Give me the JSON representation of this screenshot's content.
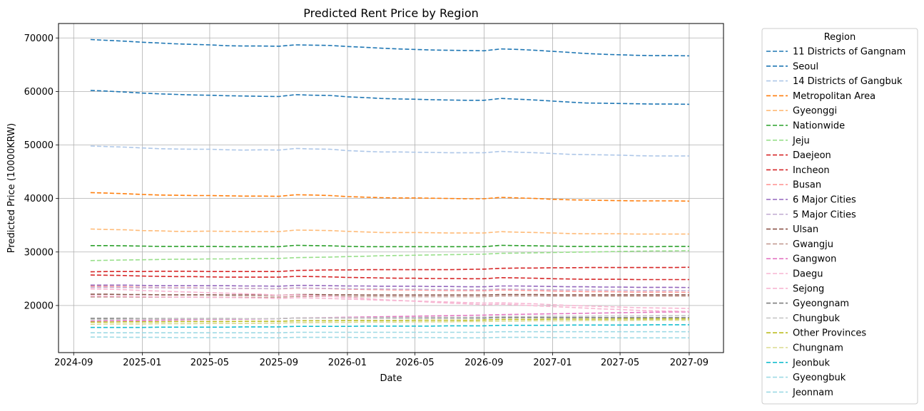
{
  "chart_data": {
    "type": "line",
    "title": "Predicted Rent Price by Region",
    "xlabel": "Date",
    "ylabel": "Predicted Price (10000KRW)",
    "grid": true,
    "line_style": "dashed",
    "legend": {
      "title": "Region",
      "placement": "outside-right"
    },
    "xlim": [
      "2024-08-05",
      "2027-11-01"
    ],
    "ylim": [
      11200,
      72700
    ],
    "x_ticks": [
      "2024-09",
      "2025-01",
      "2025-05",
      "2025-09",
      "2026-01",
      "2026-05",
      "2026-09",
      "2027-01",
      "2027-05",
      "2027-09"
    ],
    "y_ticks": [
      20000,
      30000,
      40000,
      50000,
      60000,
      70000
    ],
    "x": [
      "2024-10",
      "2024-11",
      "2024-12",
      "2025-01",
      "2025-02",
      "2025-03",
      "2025-04",
      "2025-05",
      "2025-06",
      "2025-07",
      "2025-08",
      "2025-09",
      "2025-10",
      "2025-11",
      "2025-12",
      "2026-01",
      "2026-02",
      "2026-03",
      "2026-04",
      "2026-05",
      "2026-06",
      "2026-07",
      "2026-08",
      "2026-09",
      "2026-10",
      "2026-11",
      "2026-12",
      "2027-01",
      "2027-02",
      "2027-03",
      "2027-04",
      "2027-05",
      "2027-06",
      "2027-07",
      "2027-08",
      "2027-09"
    ],
    "series": [
      {
        "name": "11 Districts of Gangnam",
        "color": "#1f77b4",
        "values": [
          69700,
          69550,
          69400,
          69200,
          69050,
          68900,
          68800,
          68700,
          68550,
          68500,
          68500,
          68450,
          68700,
          68650,
          68600,
          68400,
          68250,
          68100,
          67950,
          67850,
          67750,
          67700,
          67650,
          67600,
          67950,
          67850,
          67700,
          67500,
          67300,
          67100,
          66950,
          66850,
          66750,
          66700,
          66700,
          66650
        ]
      },
      {
        "name": "Seoul",
        "color": "#1f77b4",
        "values": [
          60200,
          60050,
          59900,
          59700,
          59550,
          59450,
          59350,
          59300,
          59200,
          59150,
          59100,
          59050,
          59400,
          59300,
          59250,
          59000,
          58850,
          58700,
          58600,
          58550,
          58450,
          58400,
          58350,
          58350,
          58700,
          58550,
          58400,
          58200,
          58000,
          57850,
          57800,
          57750,
          57700,
          57650,
          57650,
          57600
        ]
      },
      {
        "name": "14 Districts of Gangbuk",
        "color": "#aec7e8",
        "values": [
          49800,
          49700,
          49600,
          49450,
          49300,
          49250,
          49200,
          49200,
          49100,
          49050,
          49100,
          49050,
          49350,
          49250,
          49200,
          48950,
          48800,
          48700,
          48700,
          48650,
          48600,
          48550,
          48550,
          48550,
          48800,
          48650,
          48550,
          48400,
          48250,
          48200,
          48150,
          48100,
          48000,
          47950,
          47950,
          47950
        ]
      },
      {
        "name": "Metropolitan Area",
        "color": "#ff7f0e",
        "values": [
          41100,
          41000,
          40900,
          40750,
          40650,
          40600,
          40550,
          40550,
          40500,
          40450,
          40450,
          40400,
          40700,
          40650,
          40550,
          40350,
          40250,
          40150,
          40100,
          40100,
          40050,
          40000,
          39950,
          39950,
          40200,
          40100,
          40000,
          39850,
          39750,
          39700,
          39650,
          39600,
          39550,
          39550,
          39550,
          39500
        ]
      },
      {
        "name": "Gyeonggi",
        "color": "#ffbb78",
        "values": [
          34300,
          34200,
          34150,
          34000,
          33950,
          33850,
          33850,
          33900,
          33850,
          33800,
          33800,
          33800,
          34100,
          34050,
          34000,
          33850,
          33750,
          33650,
          33650,
          33650,
          33600,
          33550,
          33550,
          33550,
          33800,
          33700,
          33650,
          33550,
          33450,
          33400,
          33400,
          33400,
          33350,
          33350,
          33350,
          33350
        ]
      },
      {
        "name": "Nationwide",
        "color": "#2ca02c",
        "values": [
          31200,
          31200,
          31150,
          31100,
          31050,
          31050,
          31050,
          31050,
          31000,
          31000,
          31000,
          31000,
          31250,
          31200,
          31150,
          31050,
          31000,
          31000,
          31000,
          31000,
          31000,
          31000,
          31000,
          31000,
          31250,
          31200,
          31150,
          31100,
          31050,
          31050,
          31050,
          31050,
          31000,
          31000,
          31050,
          31050
        ]
      },
      {
        "name": "Jeju",
        "color": "#98df8a",
        "values": [
          28400,
          28450,
          28500,
          28550,
          28600,
          28650,
          28650,
          28700,
          28700,
          28750,
          28800,
          28800,
          28950,
          29000,
          29050,
          29150,
          29200,
          29300,
          29350,
          29400,
          29450,
          29500,
          29550,
          29600,
          29750,
          29800,
          29850,
          29900,
          29950,
          30000,
          30050,
          30100,
          30150,
          30200,
          30200,
          30250
        ]
      },
      {
        "name": "Daejeon",
        "color": "#d62728",
        "values": [
          26300,
          26350,
          26350,
          26350,
          26400,
          26400,
          26400,
          26350,
          26350,
          26350,
          26350,
          26350,
          26550,
          26600,
          26650,
          26650,
          26700,
          26700,
          26700,
          26700,
          26700,
          26700,
          26750,
          26800,
          26950,
          27000,
          27000,
          27050,
          27050,
          27100,
          27100,
          27100,
          27100,
          27100,
          27100,
          27150
        ]
      },
      {
        "name": "Incheon",
        "color": "#d62728",
        "values": [
          25700,
          25650,
          25600,
          25500,
          25450,
          25400,
          25400,
          25350,
          25300,
          25300,
          25300,
          25300,
          25450,
          25400,
          25350,
          25250,
          25200,
          25150,
          25100,
          25100,
          25050,
          25050,
          25000,
          25000,
          25200,
          25150,
          25100,
          25000,
          24950,
          24900,
          24900,
          24900,
          24850,
          24850,
          24850,
          24850
        ]
      },
      {
        "name": "Busan",
        "color": "#ff9896",
        "values": [
          23600,
          23550,
          23500,
          23400,
          23350,
          23300,
          23300,
          23250,
          23200,
          23200,
          23150,
          23100,
          23250,
          23200,
          23150,
          23050,
          23000,
          22950,
          22900,
          22900,
          22850,
          22800,
          22800,
          22750,
          22900,
          22850,
          22800,
          22700,
          22650,
          22600,
          22600,
          22550,
          22500,
          22500,
          22500,
          22450
        ]
      },
      {
        "name": "6 Major Cities",
        "color": "#9467bd",
        "values": [
          23800,
          23800,
          23800,
          23750,
          23700,
          23700,
          23700,
          23700,
          23700,
          23650,
          23650,
          23600,
          23750,
          23750,
          23700,
          23650,
          23650,
          23600,
          23600,
          23600,
          23550,
          23550,
          23500,
          23500,
          23650,
          23650,
          23600,
          23550,
          23500,
          23500,
          23450,
          23450,
          23400,
          23400,
          23400,
          23350
        ]
      },
      {
        "name": "5 Major Cities",
        "color": "#c5b0d5",
        "values": [
          23400,
          23400,
          23350,
          23300,
          23300,
          23250,
          23250,
          23250,
          23200,
          23200,
          23150,
          23150,
          23300,
          23250,
          23200,
          23150,
          23100,
          23100,
          23050,
          23050,
          23000,
          23000,
          22950,
          22950,
          23100,
          23050,
          23000,
          22950,
          22900,
          22900,
          22850,
          22850,
          22800,
          22800,
          22800,
          22750
        ]
      },
      {
        "name": "Ulsan",
        "color": "#8c564b",
        "values": [
          22100,
          22100,
          22050,
          22050,
          22000,
          22000,
          22000,
          22000,
          21950,
          21950,
          21950,
          21900,
          22050,
          22050,
          22000,
          22000,
          21950,
          21950,
          21950,
          21950,
          21950,
          21950,
          21950,
          21950,
          22050,
          22050,
          22050,
          22000,
          22000,
          22000,
          22000,
          22000,
          22000,
          22000,
          22000,
          22000
        ]
      },
      {
        "name": "Gwangju",
        "color": "#c49c94",
        "values": [
          21600,
          21600,
          21600,
          21550,
          21550,
          21550,
          21550,
          21550,
          21550,
          21550,
          21550,
          21550,
          21700,
          21700,
          21700,
          21650,
          21650,
          21650,
          21650,
          21650,
          21650,
          21650,
          21650,
          21650,
          21800,
          21800,
          21800,
          21750,
          21750,
          21750,
          21750,
          21750,
          21750,
          21750,
          21750,
          21750
        ]
      },
      {
        "name": "Gangwon",
        "color": "#e377c2",
        "values": [
          17100,
          17150,
          17200,
          17200,
          17250,
          17300,
          17350,
          17400,
          17400,
          17450,
          17500,
          17550,
          17650,
          17700,
          17750,
          17800,
          17850,
          17900,
          17950,
          18000,
          18050,
          18100,
          18150,
          18200,
          18300,
          18350,
          18400,
          18450,
          18500,
          18550,
          18600,
          18650,
          18700,
          18750,
          18800,
          18800
        ]
      },
      {
        "name": "Daegu",
        "color": "#f7b6d2",
        "values": [
          23100,
          23050,
          22950,
          22800,
          22700,
          22600,
          22500,
          22400,
          22300,
          22200,
          22100,
          21900,
          22000,
          21850,
          21700,
          21500,
          21300,
          21100,
          20950,
          20800,
          20600,
          20450,
          20300,
          20150,
          20250,
          20100,
          19950,
          19800,
          19650,
          19500,
          19350,
          19250,
          19100,
          19000,
          18950,
          18900
        ]
      },
      {
        "name": "Sejong",
        "color": "#f7b6d2",
        "values": [
          21800,
          21750,
          21700,
          21650,
          21600,
          21550,
          21550,
          21500,
          21500,
          21450,
          21400,
          21300,
          21450,
          21400,
          21300,
          21200,
          21100,
          21000,
          20900,
          20850,
          20750,
          20650,
          20550,
          20450,
          20500,
          20400,
          20300,
          20150,
          20000,
          19900,
          19800,
          19700,
          19600,
          19550,
          19500,
          19450
        ]
      },
      {
        "name": "Gyeongnam",
        "color": "#7f7f7f",
        "values": [
          17600,
          17600,
          17600,
          17550,
          17550,
          17550,
          17550,
          17550,
          17550,
          17550,
          17550,
          17550,
          17650,
          17650,
          17650,
          17650,
          17650,
          17650,
          17650,
          17650,
          17650,
          17650,
          17650,
          17650,
          17750,
          17750,
          17750,
          17750,
          17750,
          17750,
          17750,
          17750,
          17750,
          17750,
          17750,
          17750
        ]
      },
      {
        "name": "Chungbuk",
        "color": "#c7c7c7",
        "values": [
          17400,
          17400,
          17450,
          17450,
          17450,
          17500,
          17500,
          17500,
          17500,
          17550,
          17550,
          17550,
          17650,
          17650,
          17700,
          17700,
          17700,
          17750,
          17750,
          17750,
          17800,
          17800,
          17800,
          17850,
          17950,
          17950,
          17950,
          18000,
          18000,
          18000,
          18050,
          18050,
          18050,
          18100,
          18100,
          18100
        ]
      },
      {
        "name": "Other Provinces",
        "color": "#bcbd22",
        "values": [
          16900,
          16900,
          16950,
          16950,
          16950,
          17000,
          17000,
          17000,
          17000,
          17050,
          17050,
          17050,
          17150,
          17150,
          17150,
          17200,
          17200,
          17200,
          17200,
          17250,
          17250,
          17250,
          17250,
          17300,
          17400,
          17400,
          17400,
          17450,
          17450,
          17450,
          17450,
          17500,
          17500,
          17500,
          17500,
          17500
        ]
      },
      {
        "name": "Chungnam",
        "color": "#dbdb8d",
        "values": [
          16500,
          16550,
          16550,
          16550,
          16600,
          16600,
          16600,
          16650,
          16650,
          16650,
          16700,
          16700,
          16800,
          16800,
          16850,
          16850,
          16900,
          16900,
          16900,
          16950,
          16950,
          16950,
          17000,
          17000,
          17100,
          17100,
          17150,
          17150,
          17150,
          17200,
          17200,
          17200,
          17250,
          17250,
          17250,
          17250
        ]
      },
      {
        "name": "Jeonbuk",
        "color": "#17becf",
        "values": [
          15900,
          15900,
          15900,
          15900,
          15950,
          15950,
          15950,
          15950,
          15950,
          16000,
          16000,
          16000,
          16100,
          16100,
          16100,
          16100,
          16150,
          16150,
          16150,
          16150,
          16150,
          16200,
          16200,
          16200,
          16300,
          16300,
          16300,
          16300,
          16350,
          16350,
          16350,
          16350,
          16350,
          16400,
          16400,
          16400
        ]
      },
      {
        "name": "Gyeongbuk",
        "color": "#9edae5",
        "values": [
          14900,
          14900,
          14900,
          14900,
          14900,
          14900,
          14900,
          14900,
          14900,
          14900,
          14900,
          14900,
          15000,
          15000,
          15000,
          15000,
          15000,
          15000,
          15000,
          15000,
          15000,
          15000,
          15000,
          15000,
          15100,
          15100,
          15100,
          15100,
          15100,
          15100,
          15100,
          15100,
          15100,
          15100,
          15100,
          15100
        ]
      },
      {
        "name": "Jeonnam",
        "color": "#9edae5",
        "values": [
          14100,
          14100,
          14050,
          14050,
          14050,
          14000,
          14000,
          14000,
          14000,
          14000,
          14000,
          13950,
          14050,
          14050,
          14050,
          14050,
          14000,
          14000,
          14000,
          14000,
          14000,
          13950,
          13950,
          13950,
          14050,
          14050,
          14050,
          14000,
          14000,
          14000,
          14000,
          13950,
          13950,
          13950,
          13950,
          13950
        ]
      }
    ]
  }
}
